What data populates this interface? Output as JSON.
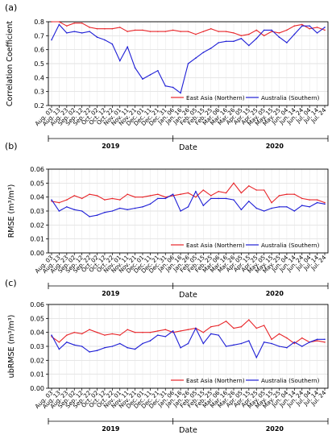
{
  "figure": {
    "xlabel": "Date",
    "year_labels": [
      "2019",
      "2020"
    ],
    "tick_labels": [
      "Aug. 03",
      "Aug. 13",
      "Aug. 23",
      "Sep. 02",
      "Sep. 12",
      "Sep. 22",
      "Oct. 02",
      "Oct. 12",
      "Oct. 22",
      "Nov. 01",
      "Nov. 11",
      "Nov. 21",
      "Dec. 01",
      "Dec. 11",
      "Dec. 21",
      "Dec. 31",
      "Jan. 06",
      "Jan. 16",
      "Jan. 26",
      "Feb. 05",
      "Feb. 15",
      "Feb. 25",
      "Mar. 06",
      "Mar. 16",
      "Mar. 26",
      "Apr. 05",
      "Apr. 15",
      "Apr. 25",
      "May. 05",
      "May. 15",
      "May. 25",
      "Jun. 04",
      "Jun. 14",
      "Jun. 24",
      "Jul. 04",
      "Jul. 14",
      "Jul. 24"
    ],
    "colors": {
      "east_asia": "#e8262a",
      "australia": "#1f1fd6"
    }
  },
  "chart_data": [
    {
      "type": "line",
      "panel_label": "(a)",
      "ylabel": "Correlation Coefficient",
      "ylim": [
        0.2,
        0.8
      ],
      "yticks": [
        "0.2",
        "0.3",
        "0.4",
        "0.5",
        "0.6",
        "0.7",
        "0.8"
      ],
      "grid": true,
      "legend_position": "lower-right",
      "series": [
        {
          "name": "East Asia (Northern)",
          "values": [
            0.8,
            0.8,
            0.77,
            0.79,
            0.79,
            0.76,
            0.75,
            0.75,
            0.75,
            0.76,
            0.73,
            0.74,
            0.74,
            0.73,
            0.73,
            0.73,
            0.74,
            0.73,
            0.73,
            0.71,
            0.73,
            0.75,
            0.73,
            0.73,
            0.72,
            0.7,
            0.71,
            0.74,
            0.7,
            0.73,
            0.72,
            0.74,
            0.77,
            0.78,
            0.75,
            0.76,
            0.74
          ]
        },
        {
          "name": "Australia (Southern)",
          "values": [
            0.67,
            0.78,
            0.72,
            0.73,
            0.72,
            0.73,
            0.69,
            0.67,
            0.64,
            0.52,
            0.62,
            0.47,
            0.39,
            0.42,
            0.45,
            0.34,
            0.33,
            0.29,
            0.5,
            0.54,
            0.58,
            0.61,
            0.65,
            0.66,
            0.66,
            0.68,
            0.63,
            0.68,
            0.74,
            0.74,
            0.69,
            0.65,
            0.71,
            0.77,
            0.77,
            0.72,
            0.76
          ]
        }
      ]
    },
    {
      "type": "line",
      "panel_label": "(b)",
      "ylabel": "RMSE (m³/m³)",
      "ylim": [
        0.0,
        0.06
      ],
      "yticks": [
        "0.00",
        "0.01",
        "0.02",
        "0.03",
        "0.04",
        "0.05",
        "0.06"
      ],
      "grid": true,
      "legend_position": "lower-right",
      "series": [
        {
          "name": "East Asia (Northern)",
          "values": [
            0.037,
            0.036,
            0.038,
            0.041,
            0.039,
            0.042,
            0.041,
            0.038,
            0.039,
            0.038,
            0.042,
            0.04,
            0.04,
            0.041,
            0.042,
            0.04,
            0.041,
            0.042,
            0.043,
            0.04,
            0.045,
            0.041,
            0.044,
            0.043,
            0.05,
            0.043,
            0.048,
            0.045,
            0.045,
            0.036,
            0.041,
            0.042,
            0.042,
            0.039,
            0.038,
            0.038,
            0.036
          ]
        },
        {
          "name": "Australia (Southern)",
          "values": [
            0.038,
            0.03,
            0.033,
            0.031,
            0.03,
            0.026,
            0.027,
            0.029,
            0.03,
            0.032,
            0.031,
            0.032,
            0.033,
            0.035,
            0.039,
            0.039,
            0.042,
            0.03,
            0.033,
            0.044,
            0.034,
            0.039,
            0.039,
            0.039,
            0.038,
            0.031,
            0.037,
            0.032,
            0.03,
            0.032,
            0.033,
            0.033,
            0.03,
            0.034,
            0.033,
            0.036,
            0.035
          ]
        }
      ]
    },
    {
      "type": "line",
      "panel_label": "(c)",
      "ylabel": "ubRMSE (m³/m³)",
      "ylim": [
        0.0,
        0.06
      ],
      "yticks": [
        "0.00",
        "0.01",
        "0.02",
        "0.03",
        "0.04",
        "0.05",
        "0.06"
      ],
      "grid": true,
      "legend_position": "lower-right",
      "series": [
        {
          "name": "East Asia (Northern)",
          "values": [
            0.037,
            0.033,
            0.038,
            0.04,
            0.039,
            0.042,
            0.04,
            0.038,
            0.039,
            0.038,
            0.042,
            0.04,
            0.04,
            0.04,
            0.041,
            0.042,
            0.04,
            0.041,
            0.042,
            0.043,
            0.04,
            0.044,
            0.045,
            0.048,
            0.043,
            0.044,
            0.049,
            0.043,
            0.045,
            0.035,
            0.039,
            0.036,
            0.032,
            0.036,
            0.033,
            0.034,
            0.033
          ]
        },
        {
          "name": "Australia (Southern)",
          "values": [
            0.038,
            0.028,
            0.033,
            0.031,
            0.03,
            0.026,
            0.027,
            0.029,
            0.03,
            0.032,
            0.029,
            0.028,
            0.032,
            0.034,
            0.038,
            0.037,
            0.041,
            0.029,
            0.032,
            0.043,
            0.032,
            0.039,
            0.038,
            0.03,
            0.031,
            0.032,
            0.034,
            0.022,
            0.033,
            0.032,
            0.03,
            0.029,
            0.033,
            0.03,
            0.033,
            0.035,
            0.035
          ]
        }
      ]
    }
  ]
}
